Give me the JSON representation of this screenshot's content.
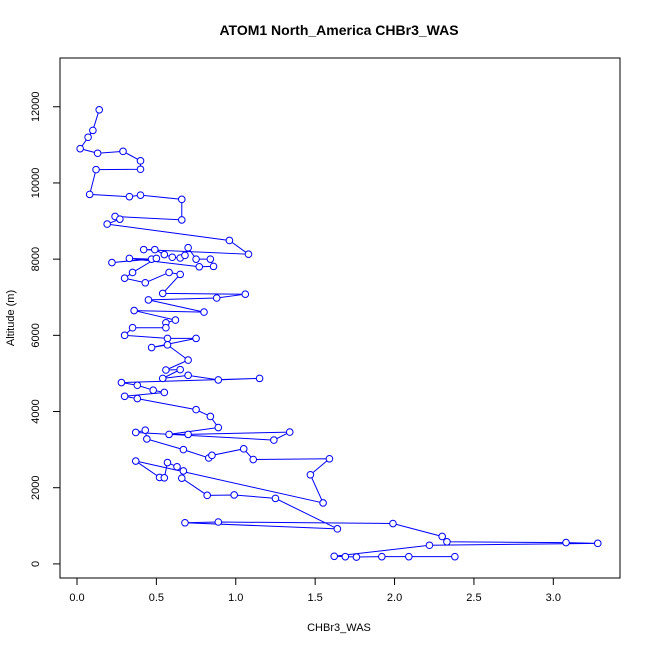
{
  "chart_data": {
    "type": "scatter",
    "title": "ATOM1 North_America CHBr3_WAS",
    "x_label": "CHBr3_WAS",
    "y_label": "Altitude (m)",
    "color": "#0000ff",
    "lines": true,
    "xlim": [
      -0.107,
      3.42
    ],
    "ylim": [
      -370,
      13280
    ],
    "xticks": [
      {
        "value": 0,
        "label": "0.0"
      },
      0.5,
      {
        "value": 1,
        "label": "1.0"
      },
      1.5,
      {
        "value": 2,
        "label": "2.0"
      },
      2.5,
      {
        "value": 3,
        "label": "3.0"
      }
    ],
    "yticks": [
      0,
      2000,
      4000,
      6000,
      8000,
      10000,
      12000
    ],
    "x": [
      0.14,
      0.1,
      0.07,
      0.02,
      0.13,
      0.29,
      0.4,
      0.4,
      0.12,
      0.08,
      0.33,
      0.4,
      0.66,
      0.66,
      0.24,
      0.27,
      0.19,
      0.96,
      1.08,
      0.42,
      0.49,
      0.55,
      0.6,
      0.65,
      0.68,
      0.7,
      0.75,
      0.84,
      0.86,
      0.77,
      0.33,
      0.47,
      0.22,
      0.5,
      0.35,
      0.3,
      0.43,
      0.58,
      0.65,
      0.54,
      1.06,
      0.88,
      0.45,
      0.8,
      0.36,
      0.62,
      0.56,
      0.56,
      0.35,
      0.3,
      0.57,
      0.75,
      0.47,
      0.57,
      0.7,
      0.56,
      0.65,
      0.54,
      0.7,
      0.89,
      1.15,
      0.28,
      0.38,
      0.48,
      0.55,
      0.3,
      0.38,
      0.75,
      0.84,
      0.89,
      0.58,
      0.7,
      1.34,
      1.24,
      0.37,
      0.43,
      0.44,
      0.67,
      0.83,
      0.85,
      1.05,
      1.11,
      1.59,
      1.47,
      1.55,
      0.37,
      0.52,
      0.55,
      0.57,
      0.63,
      0.67,
      0.66,
      0.82,
      0.99,
      1.25,
      1.64,
      0.68,
      0.89,
      1.99,
      2.3,
      2.33,
      3.08,
      3.28,
      2.22,
      1.62,
      1.69,
      1.76,
      1.92,
      2.09,
      2.38
    ],
    "y": [
      11920,
      11380,
      11200,
      10900,
      10780,
      10830,
      10580,
      10360,
      10350,
      9700,
      9640,
      9680,
      9570,
      9030,
      9120,
      9050,
      8920,
      8490,
      8130,
      8250,
      8250,
      8120,
      8050,
      8030,
      8100,
      8300,
      8000,
      8000,
      7810,
      7800,
      8020,
      8000,
      7910,
      8020,
      7650,
      7500,
      7380,
      7650,
      7600,
      7100,
      7080,
      6980,
      6930,
      6610,
      6650,
      6400,
      6330,
      6200,
      6200,
      6000,
      5920,
      5920,
      5680,
      5750,
      5350,
      5090,
      5100,
      4870,
      4950,
      4830,
      4870,
      4760,
      4690,
      4560,
      4500,
      4400,
      4340,
      4050,
      3870,
      3580,
      3400,
      3400,
      3460,
      3250,
      3450,
      3510,
      3280,
      3000,
      2780,
      2850,
      3020,
      2740,
      2760,
      2340,
      1600,
      2700,
      2270,
      2260,
      2660,
      2550,
      2440,
      2250,
      1800,
      1810,
      1720,
      920,
      1080,
      1100,
      1060,
      720,
      580,
      560,
      540,
      490,
      200,
      190,
      180,
      190,
      190,
      190
    ]
  }
}
